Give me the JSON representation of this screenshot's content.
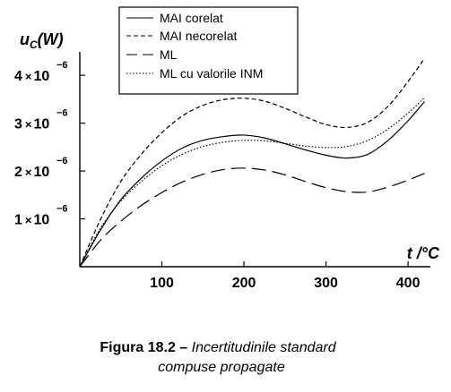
{
  "chart_data": {
    "type": "line",
    "x_axis": {
      "label_var": "t",
      "label_sep": " /",
      "label_unit": "°C",
      "xlim": [
        0,
        425
      ],
      "ticks": [
        {
          "value": 100,
          "label": "100"
        },
        {
          "value": 200,
          "label": "200"
        },
        {
          "value": 300,
          "label": "300"
        },
        {
          "value": 400,
          "label": "400"
        }
      ]
    },
    "y_axis": {
      "label_var": "u",
      "label_sub": "C",
      "label_unit": "(W)",
      "ylim": [
        0,
        4.6e-06
      ],
      "ticks": [
        {
          "value": 1e-06,
          "mantissa": "1",
          "times": "×",
          "base": "10",
          "exp": "−6"
        },
        {
          "value": 2e-06,
          "mantissa": "2",
          "times": "×",
          "base": "10",
          "exp": "−6"
        },
        {
          "value": 3e-06,
          "mantissa": "3",
          "times": "×",
          "base": "10",
          "exp": "−6"
        },
        {
          "value": 4e-06,
          "mantissa": "4",
          "times": "×",
          "base": "10",
          "exp": "−6"
        }
      ]
    },
    "series": [
      {
        "name": "MAI corelat",
        "style": "solid",
        "x": [
          0,
          25,
          50,
          75,
          100,
          125,
          150,
          175,
          200,
          225,
          250,
          275,
          300,
          325,
          350,
          375,
          400,
          420
        ],
        "y": [
          0,
          7.6e-07,
          1.4e-06,
          1.85e-06,
          2.21e-06,
          2.48e-06,
          2.64e-06,
          2.72e-06,
          2.75e-06,
          2.69e-06,
          2.57e-06,
          2.44e-06,
          2.33e-06,
          2.27e-06,
          2.34e-06,
          2.63e-06,
          3.05e-06,
          3.45e-06
        ]
      },
      {
        "name": "MAI necorelat",
        "style": "dashed",
        "x": [
          0,
          25,
          50,
          75,
          100,
          125,
          150,
          175,
          200,
          225,
          250,
          275,
          300,
          325,
          350,
          375,
          400,
          420
        ],
        "y": [
          0,
          9.8e-07,
          1.78e-06,
          2.35e-06,
          2.8e-06,
          3.15e-06,
          3.37e-06,
          3.49e-06,
          3.52e-06,
          3.46e-06,
          3.31e-06,
          3.13e-06,
          2.97e-06,
          2.91e-06,
          3.01e-06,
          3.34e-06,
          3.87e-06,
          4.35e-06
        ]
      },
      {
        "name": "ML",
        "style": "longdash",
        "x": [
          0,
          25,
          50,
          75,
          100,
          125,
          150,
          175,
          200,
          225,
          250,
          275,
          300,
          325,
          350,
          375,
          400,
          420
        ],
        "y": [
          0,
          5.5e-07,
          9.5e-07,
          1.28e-06,
          1.55e-06,
          1.77e-06,
          1.93e-06,
          2.03e-06,
          2.06e-06,
          2.02e-06,
          1.92e-06,
          1.78e-06,
          1.65e-06,
          1.57e-06,
          1.56e-06,
          1.66e-06,
          1.81e-06,
          1.95e-06
        ]
      },
      {
        "name": "ML cu valorile INM",
        "style": "dotted",
        "x": [
          0,
          25,
          50,
          75,
          100,
          125,
          150,
          175,
          200,
          225,
          250,
          275,
          300,
          325,
          350,
          375,
          400,
          420
        ],
        "y": [
          0,
          8e-07,
          1.37e-06,
          1.78e-06,
          2.11e-06,
          2.35e-06,
          2.51e-06,
          2.6e-06,
          2.64e-06,
          2.63e-06,
          2.58e-06,
          2.52e-06,
          2.49e-06,
          2.51e-06,
          2.63e-06,
          2.87e-06,
          3.21e-06,
          3.53e-06
        ]
      }
    ]
  },
  "caption": {
    "label": "Figura 18.2 – ",
    "line1": "Incertitudinile standard",
    "line2": "compuse propagate"
  }
}
